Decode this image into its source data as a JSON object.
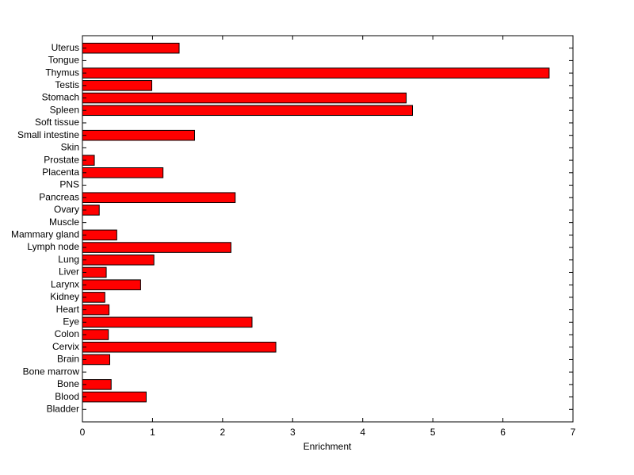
{
  "chart_data": {
    "type": "bar",
    "orientation": "horizontal",
    "categories": [
      "Uterus",
      "Tongue",
      "Thymus",
      "Testis",
      "Stomach",
      "Spleen",
      "Soft tissue",
      "Small intestine",
      "Skin",
      "Prostate",
      "Placenta",
      "PNS",
      "Pancreas",
      "Ovary",
      "Muscle",
      "Mammary gland",
      "Lymph node",
      "Lung",
      "Liver",
      "Larynx",
      "Kidney",
      "Heart",
      "Eye",
      "Colon",
      "Cervix",
      "Brain",
      "Bone marrow",
      "Bone",
      "Blood",
      "Bladder"
    ],
    "values": [
      1.38,
      0,
      6.66,
      0.99,
      4.62,
      4.71,
      0,
      1.6,
      0,
      0.17,
      1.15,
      0,
      2.18,
      0.24,
      0,
      0.49,
      2.12,
      1.02,
      0.34,
      0.83,
      0.32,
      0.38,
      2.42,
      0.37,
      2.76,
      0.39,
      0,
      0.41,
      0.91,
      0
    ],
    "title": "",
    "xlabel": "Enrichment",
    "ylabel": "",
    "xlim": [
      0,
      7
    ],
    "xticks": [
      "0",
      "1",
      "2",
      "3",
      "4",
      "5",
      "6",
      "7"
    ],
    "grid": false,
    "bar_color": "#ff0000",
    "edge_color": "#000000"
  }
}
